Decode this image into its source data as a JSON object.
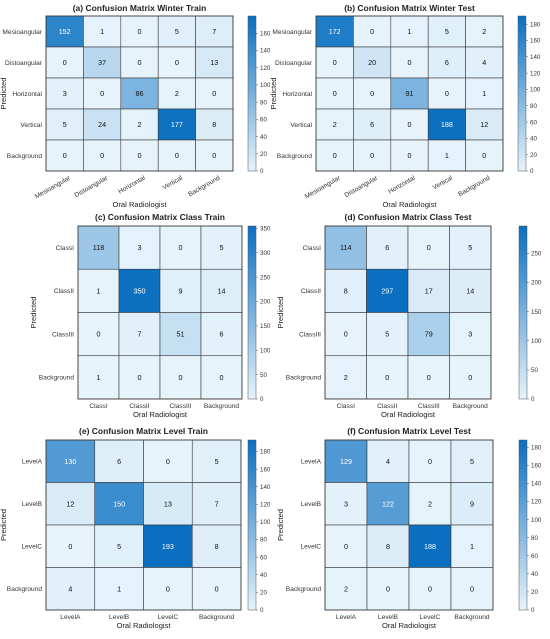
{
  "colors": {
    "low": "#e6f3fb",
    "high": "#0a6fc0",
    "grid": "#3a3a3a",
    "text_dark": "#111111",
    "text_light": "#ffffff"
  },
  "chart_data": [
    {
      "type": "heatmap",
      "title": "(a) Confusion Matrix Winter Train",
      "xlabel": "Oral Radiologist",
      "ylabel": "Predicted",
      "x_categories": [
        "Mesioangular",
        "Distoangular",
        "Horizontal",
        "Vertical",
        "Background"
      ],
      "y_categories": [
        "Mesioangular",
        "Distoangular",
        "Horizontal",
        "Vertical",
        "Background"
      ],
      "values": [
        [
          152,
          1,
          0,
          5,
          7
        ],
        [
          0,
          37,
          0,
          0,
          13
        ],
        [
          3,
          0,
          86,
          2,
          0
        ],
        [
          5,
          24,
          2,
          177,
          8
        ],
        [
          0,
          0,
          0,
          0,
          0
        ]
      ],
      "x_tick_rotation": 30,
      "colorbar": {
        "min": 0,
        "max": 180,
        "ticks": [
          0,
          20,
          40,
          60,
          80,
          100,
          120,
          140,
          160
        ]
      }
    },
    {
      "type": "heatmap",
      "title": "(b) Confusion Matrix Winter Test",
      "xlabel": "Oral Radiologist",
      "ylabel": "Predicted",
      "x_categories": [
        "Mesioangular",
        "Distoangular",
        "Horizontal",
        "Vertical",
        "Background"
      ],
      "y_categories": [
        "Mesioangular",
        "Distoangular",
        "Horizontal",
        "Vertical",
        "Background"
      ],
      "values": [
        [
          172,
          0,
          1,
          5,
          2
        ],
        [
          0,
          20,
          0,
          6,
          4
        ],
        [
          0,
          0,
          91,
          0,
          1
        ],
        [
          2,
          6,
          0,
          188,
          12
        ],
        [
          0,
          0,
          0,
          1,
          0
        ]
      ],
      "x_tick_rotation": 30,
      "colorbar": {
        "min": 0,
        "max": 190,
        "ticks": [
          0,
          20,
          40,
          60,
          80,
          100,
          120,
          140,
          160,
          180
        ]
      }
    },
    {
      "type": "heatmap",
      "title": "(c) Confusion Matrix Class Train",
      "xlabel": "Oral Radiologist",
      "ylabel": "Predicted",
      "x_categories": [
        "ClassI",
        "ClassII",
        "ClassIII",
        "Background"
      ],
      "y_categories": [
        "ClassI",
        "ClassII",
        "ClassIII",
        "Background"
      ],
      "values": [
        [
          118,
          3,
          0,
          5
        ],
        [
          1,
          350,
          9,
          14
        ],
        [
          0,
          7,
          51,
          6
        ],
        [
          1,
          0,
          0,
          0
        ]
      ],
      "x_tick_rotation": 0,
      "colorbar": {
        "min": 0,
        "max": 355,
        "ticks": [
          0,
          50,
          100,
          150,
          200,
          250,
          300,
          350
        ]
      }
    },
    {
      "type": "heatmap",
      "title": "(d) Confusion Matrix Class Test",
      "xlabel": "Oral Radiologist",
      "ylabel": "Predicted",
      "x_categories": [
        "ClassI",
        "ClassII",
        "ClassIII",
        "Background"
      ],
      "y_categories": [
        "ClassI",
        "ClassII",
        "ClassIII",
        "Background"
      ],
      "values": [
        [
          114,
          6,
          0,
          5
        ],
        [
          8,
          297,
          17,
          14
        ],
        [
          0,
          5,
          79,
          3
        ],
        [
          2,
          0,
          0,
          0
        ]
      ],
      "x_tick_rotation": 0,
      "colorbar": {
        "min": 0,
        "max": 297,
        "ticks": [
          0,
          50,
          100,
          150,
          200,
          250
        ]
      }
    },
    {
      "type": "heatmap",
      "title": "(e) Confusion Matrix Level Train",
      "xlabel": "Oral Radiologist",
      "ylabel": "Predicted",
      "x_categories": [
        "LevelA",
        "LevelB",
        "LevelC",
        "Background"
      ],
      "y_categories": [
        "LevelA",
        "LevelB",
        "LevelC",
        "Background"
      ],
      "values": [
        [
          130,
          6,
          0,
          5
        ],
        [
          12,
          150,
          13,
          7
        ],
        [
          0,
          5,
          193,
          8
        ],
        [
          4,
          1,
          0,
          0
        ]
      ],
      "x_tick_rotation": 0,
      "colorbar": {
        "min": 0,
        "max": 193,
        "ticks": [
          0,
          20,
          40,
          60,
          80,
          100,
          120,
          140,
          160,
          180
        ]
      }
    },
    {
      "type": "heatmap",
      "title": "(f) Confusion Matrix Level Test",
      "xlabel": "Oral Radiologist",
      "ylabel": "Predicted",
      "x_categories": [
        "LevelA",
        "LevelB",
        "LevelC",
        "Background"
      ],
      "y_categories": [
        "LevelA",
        "LevelB",
        "LevelC",
        "Background"
      ],
      "values": [
        [
          129,
          4,
          0,
          5
        ],
        [
          3,
          122,
          2,
          9
        ],
        [
          0,
          8,
          188,
          1
        ],
        [
          2,
          0,
          0,
          0
        ]
      ],
      "x_tick_rotation": 0,
      "colorbar": {
        "min": 0,
        "max": 188,
        "ticks": [
          0,
          20,
          40,
          60,
          80,
          100,
          120,
          140,
          160,
          180
        ]
      }
    }
  ]
}
